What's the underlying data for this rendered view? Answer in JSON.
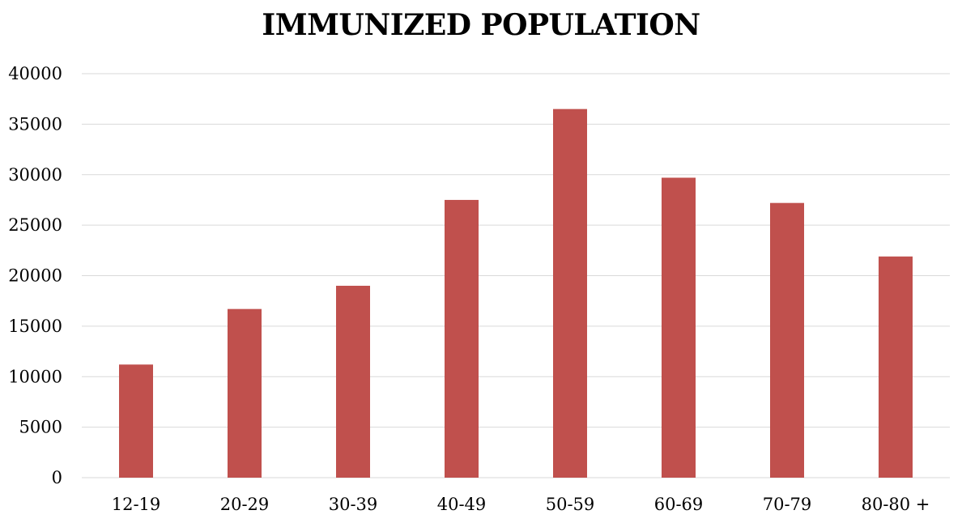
{
  "chart_data": {
    "type": "bar",
    "title": "IMMUNIZED POPULATION",
    "xlabel": "",
    "ylabel": "",
    "categories": [
      "12-19",
      "20-29",
      "30-39",
      "40-49",
      "50-59",
      "60-69",
      "70-79",
      "80-80 +"
    ],
    "values": [
      11200,
      16700,
      19000,
      27500,
      36500,
      29700,
      27200,
      21900
    ],
    "ylim": [
      0,
      40000
    ],
    "yticks": [
      "0",
      "5000",
      "10000",
      "15000",
      "20000",
      "25000",
      "30000",
      "35000",
      "40000"
    ],
    "grid": true,
    "legend": "none",
    "bar_color": "#C0504D",
    "grid_color": "#D9D9D9"
  }
}
